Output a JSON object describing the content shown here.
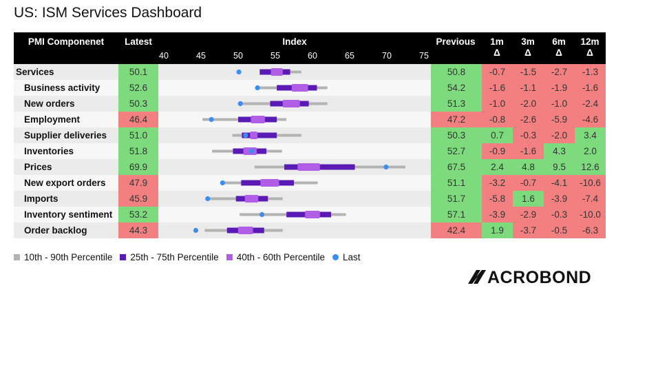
{
  "title": "US: ISM Services Dashboard",
  "headers": {
    "component": "PMI Componenet",
    "latest": "Latest",
    "index": "Index",
    "previous": "Previous",
    "d1m": [
      "1m",
      "Δ"
    ],
    "d3m": [
      "3m",
      "Δ"
    ],
    "d6m": [
      "6m",
      "Δ"
    ],
    "d12m": [
      "12m",
      "Δ"
    ]
  },
  "colors": {
    "green": "#7ddb7d",
    "red": "#f28080",
    "p10_90": "#b3b3b3",
    "p25_75": "#5a1bb5",
    "p40_60": "#b15ee6",
    "last": "#3a8ef0"
  },
  "chart_data": {
    "type": "table",
    "xlim": [
      40,
      75
    ],
    "ticks": [
      "40",
      "45",
      "50",
      "55",
      "60",
      "65",
      "70",
      "75"
    ],
    "rows": [
      {
        "name": "Services",
        "latest": "50.1",
        "latest_c": "g",
        "p10": 53.0,
        "p25": 52.9,
        "p40": 54.4,
        "p60": 56.0,
        "p75": 57.0,
        "p90": 58.5,
        "last": 50.1,
        "previous": "50.8",
        "prev_c": "g",
        "d1m": "-0.7",
        "c1": "r",
        "d3m": "-1.5",
        "c3": "r",
        "d6m": "-2.7",
        "c6": "r",
        "d12m": "-1.3",
        "c12": "r",
        "indent": false
      },
      {
        "name": "Business activity",
        "latest": "52.6",
        "latest_c": "g",
        "p10": 52.6,
        "p25": 55.2,
        "p40": 57.2,
        "p60": 59.4,
        "p75": 60.6,
        "p90": 62.0,
        "last": 52.6,
        "previous": "54.2",
        "prev_c": "g",
        "d1m": "-1.6",
        "c1": "r",
        "d3m": "-1.1",
        "c3": "r",
        "d6m": "-1.9",
        "c6": "r",
        "d12m": "-1.6",
        "c12": "r",
        "indent": true
      },
      {
        "name": "New orders",
        "latest": "50.3",
        "latest_c": "g",
        "p10": 50.3,
        "p25": 54.3,
        "p40": 56.0,
        "p60": 58.3,
        "p75": 59.5,
        "p90": 62.0,
        "last": 50.3,
        "previous": "51.3",
        "prev_c": "g",
        "d1m": "-1.0",
        "c1": "r",
        "d3m": "-2.0",
        "c3": "r",
        "d6m": "-1.0",
        "c6": "r",
        "d12m": "-2.4",
        "c12": "r",
        "indent": true
      },
      {
        "name": "Employment",
        "latest": "46.4",
        "latest_c": "r",
        "p10": 45.2,
        "p25": 50.0,
        "p40": 51.7,
        "p60": 53.6,
        "p75": 55.2,
        "p90": 56.5,
        "last": 46.4,
        "previous": "47.2",
        "prev_c": "r",
        "d1m": "-0.8",
        "c1": "r",
        "d3m": "-2.6",
        "c3": "r",
        "d6m": "-5.9",
        "c6": "r",
        "d12m": "-4.6",
        "c12": "r",
        "indent": true
      },
      {
        "name": "Supplier deliveries",
        "latest": "51.0",
        "latest_c": "g",
        "p10": 49.2,
        "p25": 50.5,
        "p40": 51.6,
        "p60": 52.6,
        "p75": 55.2,
        "p90": 58.5,
        "last": 51.0,
        "previous": "50.3",
        "prev_c": "g",
        "d1m": "0.7",
        "c1": "g",
        "d3m": "-0.3",
        "c3": "r",
        "d6m": "-2.0",
        "c6": "r",
        "d12m": "3.4",
        "c12": "g",
        "indent": true
      },
      {
        "name": "Inventories",
        "latest": "51.8",
        "latest_c": "g",
        "p10": 46.5,
        "p25": 49.3,
        "p40": 50.7,
        "p60": 52.5,
        "p75": 53.8,
        "p90": 55.9,
        "last": 51.8,
        "previous": "52.7",
        "prev_c": "g",
        "d1m": "-0.9",
        "c1": "r",
        "d3m": "-1.6",
        "c3": "r",
        "d6m": "4.3",
        "c6": "g",
        "d12m": "2.0",
        "c12": "g",
        "indent": true
      },
      {
        "name": "Prices",
        "latest": "69.9",
        "latest_c": "g",
        "p10": 52.2,
        "p25": 56.2,
        "p40": 58.0,
        "p60": 61.0,
        "p75": 65.7,
        "p90": 72.5,
        "last": 69.9,
        "previous": "67.5",
        "prev_c": "g",
        "d1m": "2.4",
        "c1": "g",
        "d3m": "4.8",
        "c3": "g",
        "d6m": "9.5",
        "c6": "g",
        "d12m": "12.6",
        "c12": "g",
        "indent": true
      },
      {
        "name": "New export orders",
        "latest": "47.9",
        "latest_c": "r",
        "p10": 47.9,
        "p25": 50.4,
        "p40": 53.0,
        "p60": 55.5,
        "p75": 57.5,
        "p90": 60.7,
        "last": 47.9,
        "previous": "51.1",
        "prev_c": "g",
        "d1m": "-3.2",
        "c1": "r",
        "d3m": "-0.7",
        "c3": "r",
        "d6m": "-4.1",
        "c6": "r",
        "d12m": "-10.6",
        "c12": "r",
        "indent": true
      },
      {
        "name": "Imports",
        "latest": "45.9",
        "latest_c": "r",
        "p10": 45.9,
        "p25": 49.7,
        "p40": 50.9,
        "p60": 52.7,
        "p75": 54.0,
        "p90": 56.0,
        "last": 45.9,
        "previous": "51.7",
        "prev_c": "g",
        "d1m": "-5.8",
        "c1": "r",
        "d3m": "1.6",
        "c3": "g",
        "d6m": "-3.9",
        "c6": "r",
        "d12m": "-7.4",
        "c12": "r",
        "indent": true
      },
      {
        "name": "Inventory sentiment",
        "latest": "53.2",
        "latest_c": "g",
        "p10": 50.2,
        "p25": 56.5,
        "p40": 59.0,
        "p60": 61.0,
        "p75": 62.5,
        "p90": 64.5,
        "last": 53.2,
        "previous": "57.1",
        "prev_c": "g",
        "d1m": "-3.9",
        "c1": "r",
        "d3m": "-2.9",
        "c3": "r",
        "d6m": "-0.3",
        "c6": "r",
        "d12m": "-10.0",
        "c12": "r",
        "indent": true
      },
      {
        "name": "Order backlog",
        "latest": "44.3",
        "latest_c": "r",
        "p10": 45.5,
        "p25": 48.5,
        "p40": 50.0,
        "p60": 52.0,
        "p75": 53.5,
        "p90": 56.0,
        "last": 44.3,
        "previous": "42.4",
        "prev_c": "r",
        "d1m": "1.9",
        "c1": "g",
        "d3m": "-3.7",
        "c3": "r",
        "d6m": "-0.5",
        "c6": "r",
        "d12m": "-6.3",
        "c12": "r",
        "indent": true
      }
    ]
  },
  "legend": [
    {
      "label": "10th - 90th Percentile",
      "kind": "square",
      "color": "#b3b3b3"
    },
    {
      "label": "25th - 75th Percentile",
      "kind": "square",
      "color": "#5a1bb5"
    },
    {
      "label": "40th - 60th Percentile",
      "kind": "square",
      "color": "#b15ee6"
    },
    {
      "label": "Last",
      "kind": "dot",
      "color": "#3a8ef0"
    }
  ],
  "logo": {
    "text": "MACROBOND"
  }
}
